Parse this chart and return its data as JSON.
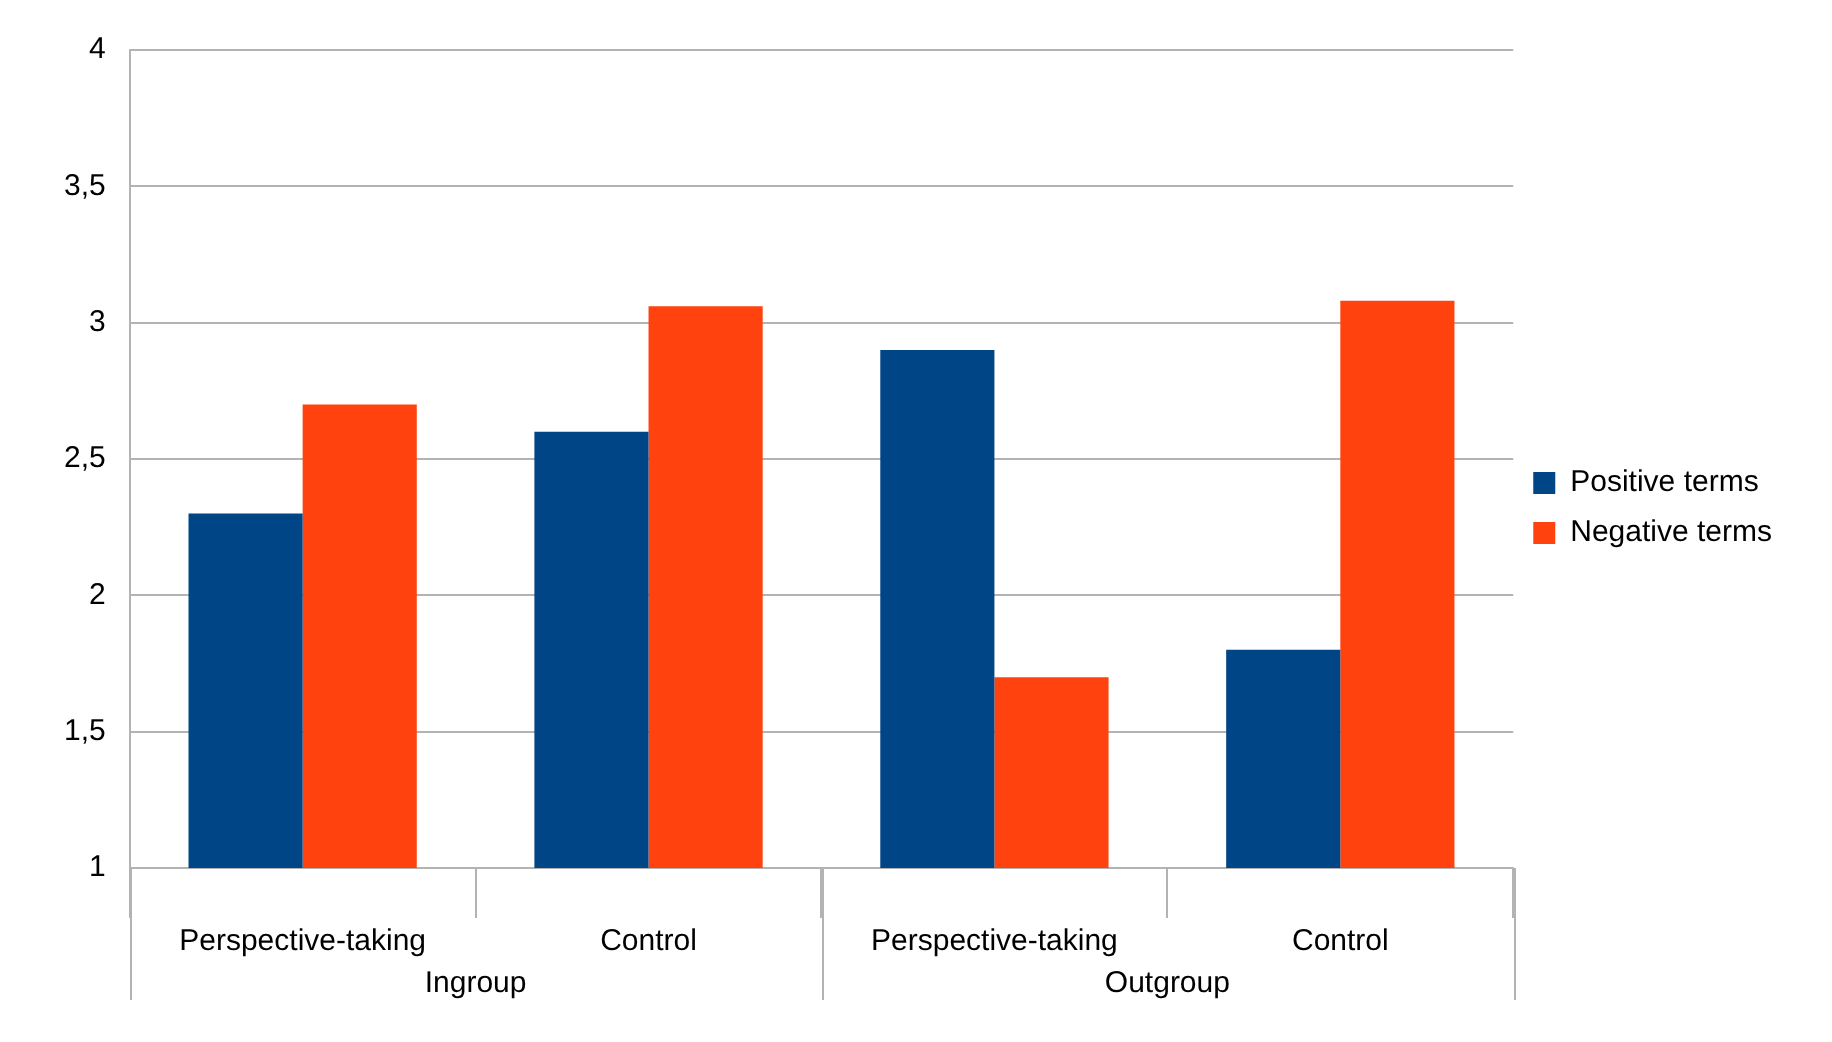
{
  "chart_data": {
    "type": "bar",
    "categories": [
      "Perspective-taking",
      "Control",
      "Perspective-taking",
      "Control"
    ],
    "series": [
      {
        "name": "Positive terms",
        "color": "#004586",
        "values": [
          2.3,
          2.6,
          2.9,
          1.8
        ]
      },
      {
        "name": "Negative terms",
        "color": "#ff420e",
        "values": [
          2.7,
          3.06,
          1.7,
          3.08
        ]
      }
    ],
    "ylim": [
      1,
      4
    ],
    "yticks": [
      1,
      {
        "value": 1.5,
        "label": "1,5"
      },
      2,
      {
        "value": 2.5,
        "label": "2,5"
      },
      3,
      {
        "value": 3.5,
        "label": "3,5"
      },
      4
    ],
    "grid": "y",
    "legend": "right",
    "annotations": [
      "Ingroup",
      "Outgroup"
    ]
  }
}
